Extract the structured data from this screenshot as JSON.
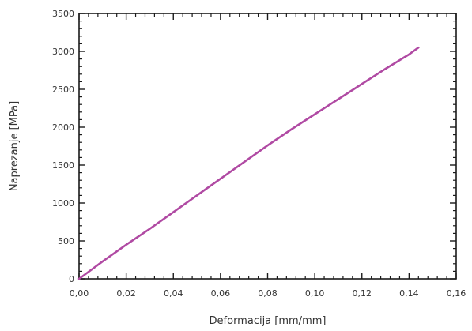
{
  "chart_data": {
    "type": "line",
    "title": "",
    "xlabel": "Deformacija [mm/mm]",
    "ylabel": "Naprezanje [MPa]",
    "xlim": [
      0,
      0.16
    ],
    "ylim": [
      0,
      3500
    ],
    "x_ticks": [
      "0,00",
      "0,02",
      "0,04",
      "0,06",
      "0,08",
      "0,10",
      "0,12",
      "0,14",
      "0,16"
    ],
    "y_ticks": [
      "0",
      "500",
      "1000",
      "1500",
      "2000",
      "2500",
      "3000",
      "3500"
    ],
    "grid": false,
    "series": [
      {
        "color": "#b04aa3",
        "x": [
          0.0,
          0.01,
          0.02,
          0.03,
          0.04,
          0.05,
          0.06,
          0.07,
          0.08,
          0.09,
          0.098,
          0.105,
          0.11,
          0.12,
          0.13,
          0.14,
          0.144
        ],
        "y": [
          0,
          230,
          450,
          660,
          880,
          1100,
          1320,
          1540,
          1760,
          1970,
          2130,
          2270,
          2370,
          2570,
          2770,
          2960,
          3050
        ]
      }
    ]
  }
}
